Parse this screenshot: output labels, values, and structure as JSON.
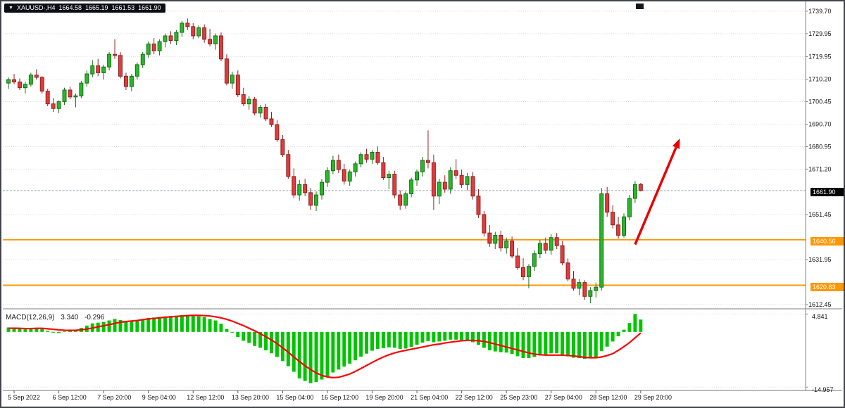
{
  "header": {
    "dropdown_icon": "▼",
    "symbol_timeframe": "XAUUSD-,H4",
    "open": "1664.58",
    "high": "1665.19",
    "low": "1661.53",
    "close": "1661.90"
  },
  "price_axis": {
    "current_price_label": "1661.90"
  },
  "macd_panel": {
    "label": "MACD(12,26,9)",
    "macd_value": "3.340",
    "signal_value": "-0.296"
  },
  "colors": {
    "bull_fill": "#2db52d",
    "bull_border": "#156e15",
    "bear_fill": "#e03c3c",
    "bear_border": "#8f1f1f",
    "macd_histogram": "#00c400",
    "macd_signal": "#ff0000",
    "level_line": "#ff9800",
    "arrow": "#e60000",
    "grid": "#d9d9d9",
    "separator": "#7e7e7e",
    "axis_text": "#111111",
    "current_price_line": "#9aa4ad"
  },
  "chart_data": {
    "type": "candlestick",
    "symbol": "XAUUSD",
    "timeframe": "H4",
    "title": "XAUUSD-,H4",
    "current_ohlc": {
      "open": 1664.58,
      "high": 1665.19,
      "low": 1661.53,
      "close": 1661.9
    },
    "current_price": 1661.9,
    "current_price_label": "1661.90",
    "y_ticks": [
      {
        "price": 1739.7,
        "label": "1739.70"
      },
      {
        "price": 1729.95,
        "label": "1729.95"
      },
      {
        "price": 1719.95,
        "label": "1719.95"
      },
      {
        "price": 1710.2,
        "label": "1710.20"
      },
      {
        "price": 1700.45,
        "label": "1700.45"
      },
      {
        "price": 1690.7,
        "label": "1690.70"
      },
      {
        "price": 1680.95,
        "label": "1680.95"
      },
      {
        "price": 1671.2,
        "label": "1671.20"
      },
      {
        "price": 1651.45,
        "label": "1651.45"
      },
      {
        "price": 1631.95,
        "label": "1631.95"
      },
      {
        "price": 1612.45,
        "label": "1612.45"
      }
    ],
    "x_ticks": [
      {
        "i": 1,
        "label": "5 Sep 2022"
      },
      {
        "i": 9,
        "label": "6 Sep 12:00"
      },
      {
        "i": 17,
        "label": "7 Sep 20:00"
      },
      {
        "i": 25,
        "label": "9 Sep 04:00"
      },
      {
        "i": 33,
        "label": "12 Sep 12:00"
      },
      {
        "i": 41,
        "label": "13 Sep 20:00"
      },
      {
        "i": 49,
        "label": "15 Sep 04:00"
      },
      {
        "i": 57,
        "label": "16 Sep 12:00"
      },
      {
        "i": 65,
        "label": "19 Sep 20:00"
      },
      {
        "i": 73,
        "label": "21 Sep 04:00"
      },
      {
        "i": 81,
        "label": "22 Sep 12:00"
      },
      {
        "i": 89,
        "label": "25 Sep 23:00"
      },
      {
        "i": 97,
        "label": "27 Sep 04:00"
      },
      {
        "i": 105,
        "label": "28 Sep 12:00"
      },
      {
        "i": 113,
        "label": "29 Sep 20:00"
      }
    ],
    "levels": [
      {
        "price": 1640.56,
        "label": "1640.56"
      },
      {
        "price": 1620.83,
        "label": "1620.83"
      }
    ],
    "arrow": {
      "from_index": 112,
      "from_price": 1638.5,
      "to_index": 120,
      "to_price": 1684.5
    },
    "candles": [
      [
        1708.5,
        1711.0,
        1706.0,
        1710.0
      ],
      [
        1710.0,
        1712.5,
        1708.0,
        1709.0
      ],
      [
        1709.0,
        1710.5,
        1705.5,
        1706.5
      ],
      [
        1706.5,
        1709.0,
        1704.0,
        1708.0
      ],
      [
        1708.0,
        1713.0,
        1707.0,
        1712.0
      ],
      [
        1712.0,
        1714.5,
        1710.0,
        1711.0
      ],
      [
        1711.0,
        1711.5,
        1704.0,
        1705.0
      ],
      [
        1705.0,
        1706.0,
        1698.5,
        1699.5
      ],
      [
        1699.5,
        1702.0,
        1696.0,
        1697.5
      ],
      [
        1697.5,
        1701.0,
        1695.5,
        1700.5
      ],
      [
        1700.5,
        1706.5,
        1699.0,
        1705.5
      ],
      [
        1705.5,
        1707.0,
        1701.5,
        1702.5
      ],
      [
        1702.5,
        1704.0,
        1698.0,
        1703.0
      ],
      [
        1703.0,
        1709.5,
        1702.0,
        1708.5
      ],
      [
        1708.5,
        1714.0,
        1707.0,
        1712.5
      ],
      [
        1712.5,
        1718.5,
        1711.0,
        1716.0
      ],
      [
        1716.0,
        1719.0,
        1711.5,
        1713.0
      ],
      [
        1713.0,
        1716.5,
        1710.0,
        1715.5
      ],
      [
        1715.5,
        1722.0,
        1714.0,
        1721.0
      ],
      [
        1721.0,
        1727.5,
        1719.0,
        1720.5
      ],
      [
        1720.5,
        1722.0,
        1710.5,
        1711.5
      ],
      [
        1711.5,
        1713.0,
        1705.5,
        1707.0
      ],
      [
        1707.0,
        1712.5,
        1705.0,
        1711.5
      ],
      [
        1711.5,
        1717.5,
        1710.0,
        1716.5
      ],
      [
        1716.5,
        1722.0,
        1715.0,
        1721.0
      ],
      [
        1721.0,
        1726.5,
        1719.5,
        1725.5
      ],
      [
        1725.5,
        1728.0,
        1721.0,
        1722.5
      ],
      [
        1722.5,
        1727.5,
        1720.5,
        1726.5
      ],
      [
        1726.5,
        1730.0,
        1724.0,
        1729.0
      ],
      [
        1729.0,
        1731.0,
        1725.5,
        1727.0
      ],
      [
        1727.0,
        1731.5,
        1725.0,
        1730.5
      ],
      [
        1730.5,
        1735.5,
        1728.5,
        1734.5
      ],
      [
        1734.5,
        1736.5,
        1731.5,
        1733.0
      ],
      [
        1733.0,
        1734.5,
        1727.5,
        1729.0
      ],
      [
        1729.0,
        1733.5,
        1728.0,
        1732.5
      ],
      [
        1732.5,
        1734.0,
        1726.0,
        1727.5
      ],
      [
        1727.5,
        1732.0,
        1724.5,
        1725.5
      ],
      [
        1725.5,
        1730.0,
        1723.0,
        1729.0
      ],
      [
        1729.0,
        1730.5,
        1718.0,
        1719.0
      ],
      [
        1719.0,
        1721.0,
        1707.5,
        1708.5
      ],
      [
        1708.5,
        1713.5,
        1706.0,
        1712.0
      ],
      [
        1712.0,
        1714.0,
        1702.5,
        1703.5
      ],
      [
        1703.5,
        1706.5,
        1698.5,
        1699.5
      ],
      [
        1699.5,
        1703.0,
        1697.0,
        1701.5
      ],
      [
        1701.5,
        1702.5,
        1694.5,
        1695.5
      ],
      [
        1695.5,
        1699.0,
        1693.5,
        1698.0
      ],
      [
        1698.0,
        1699.5,
        1692.0,
        1693.0
      ],
      [
        1693.0,
        1696.0,
        1689.5,
        1690.5
      ],
      [
        1690.5,
        1692.5,
        1683.0,
        1684.0
      ],
      [
        1684.0,
        1686.0,
        1676.5,
        1677.5
      ],
      [
        1677.5,
        1679.5,
        1667.0,
        1668.0
      ],
      [
        1668.0,
        1671.5,
        1658.5,
        1660.0
      ],
      [
        1660.0,
        1666.5,
        1657.5,
        1664.5
      ],
      [
        1664.5,
        1667.0,
        1659.5,
        1661.0
      ],
      [
        1661.0,
        1663.0,
        1653.5,
        1655.5
      ],
      [
        1655.5,
        1661.5,
        1653.0,
        1660.0
      ],
      [
        1660.0,
        1667.0,
        1658.0,
        1665.5
      ],
      [
        1665.5,
        1672.0,
        1663.5,
        1670.5
      ],
      [
        1670.5,
        1677.0,
        1669.0,
        1675.0
      ],
      [
        1675.0,
        1677.5,
        1669.5,
        1671.0
      ],
      [
        1671.0,
        1673.5,
        1664.5,
        1666.0
      ],
      [
        1666.0,
        1671.0,
        1664.0,
        1670.0
      ],
      [
        1670.0,
        1674.5,
        1668.0,
        1673.5
      ],
      [
        1673.5,
        1678.5,
        1672.0,
        1677.5
      ],
      [
        1677.5,
        1680.0,
        1674.0,
        1675.5
      ],
      [
        1675.5,
        1679.5,
        1673.5,
        1678.5
      ],
      [
        1678.5,
        1681.0,
        1673.0,
        1674.0
      ],
      [
        1674.0,
        1676.5,
        1666.5,
        1667.5
      ],
      [
        1667.5,
        1670.5,
        1662.5,
        1669.0
      ],
      [
        1669.0,
        1670.5,
        1658.5,
        1660.0
      ],
      [
        1660.0,
        1662.0,
        1653.5,
        1655.5
      ],
      [
        1655.5,
        1661.5,
        1654.0,
        1660.5
      ],
      [
        1660.5,
        1667.5,
        1659.0,
        1666.5
      ],
      [
        1666.5,
        1671.0,
        1664.0,
        1670.0
      ],
      [
        1670.0,
        1676.5,
        1668.0,
        1675.0
      ],
      [
        1675.0,
        1688.0,
        1671.5,
        1674.0
      ],
      [
        1674.0,
        1677.5,
        1653.5,
        1659.5
      ],
      [
        1659.5,
        1667.0,
        1656.0,
        1665.5
      ],
      [
        1665.5,
        1668.5,
        1661.0,
        1662.5
      ],
      [
        1662.5,
        1672.0,
        1660.5,
        1670.5
      ],
      [
        1670.5,
        1675.5,
        1667.0,
        1668.5
      ],
      [
        1668.5,
        1671.0,
        1663.0,
        1664.5
      ],
      [
        1664.5,
        1669.5,
        1662.0,
        1668.0
      ],
      [
        1668.0,
        1670.0,
        1658.0,
        1659.5
      ],
      [
        1659.5,
        1662.5,
        1650.0,
        1651.5
      ],
      [
        1651.5,
        1653.0,
        1642.0,
        1643.5
      ],
      [
        1643.5,
        1647.0,
        1637.5,
        1639.0
      ],
      [
        1639.0,
        1644.0,
        1636.5,
        1642.5
      ],
      [
        1642.5,
        1644.5,
        1635.5,
        1637.0
      ],
      [
        1637.0,
        1641.5,
        1634.5,
        1640.0
      ],
      [
        1640.0,
        1642.0,
        1632.5,
        1633.5
      ],
      [
        1633.5,
        1637.0,
        1627.5,
        1628.5
      ],
      [
        1628.5,
        1632.5,
        1623.0,
        1624.5
      ],
      [
        1624.5,
        1630.0,
        1619.5,
        1629.0
      ],
      [
        1629.0,
        1636.0,
        1627.0,
        1634.5
      ],
      [
        1634.5,
        1640.5,
        1632.5,
        1639.0
      ],
      [
        1639.0,
        1641.5,
        1634.5,
        1636.0
      ],
      [
        1636.0,
        1643.0,
        1634.0,
        1641.5
      ],
      [
        1641.5,
        1643.5,
        1636.5,
        1638.0
      ],
      [
        1638.0,
        1640.0,
        1629.5,
        1630.5
      ],
      [
        1630.5,
        1632.5,
        1622.5,
        1623.5
      ],
      [
        1623.5,
        1627.0,
        1618.5,
        1619.5
      ],
      [
        1619.5,
        1623.5,
        1616.5,
        1622.0
      ],
      [
        1622.0,
        1623.0,
        1614.5,
        1616.0
      ],
      [
        1616.0,
        1620.0,
        1613.0,
        1618.5
      ],
      [
        1618.5,
        1622.0,
        1615.5,
        1620.0
      ],
      [
        1620.0,
        1663.0,
        1618.5,
        1660.5
      ],
      [
        1660.5,
        1663.5,
        1650.5,
        1652.5
      ],
      [
        1652.5,
        1655.5,
        1645.5,
        1647.0
      ],
      [
        1647.0,
        1650.5,
        1641.0,
        1642.5
      ],
      [
        1642.5,
        1652.0,
        1641.5,
        1650.5
      ],
      [
        1650.5,
        1660.0,
        1649.0,
        1658.5
      ],
      [
        1658.5,
        1666.0,
        1656.5,
        1664.5
      ],
      [
        1664.58,
        1665.19,
        1661.53,
        1661.9
      ]
    ],
    "macd": {
      "params": [
        12,
        26,
        9
      ],
      "last_macd": 3.34,
      "last_signal": -0.296,
      "scale_max": 4.841,
      "scale_min": -14.957,
      "scale_max_label": "4.841",
      "scale_min_label": "-14.957",
      "histogram": [
        1.2,
        1.0,
        0.8,
        0.7,
        0.9,
        1.1,
        0.8,
        0.3,
        -0.2,
        -0.3,
        0.1,
        0.3,
        0.6,
        1.1,
        1.7,
        2.3,
        2.5,
        2.7,
        3.1,
        3.5,
        3.2,
        2.8,
        2.9,
        3.2,
        3.5,
        3.8,
        3.9,
        4.0,
        4.2,
        4.3,
        4.4,
        4.5,
        4.5,
        4.3,
        4.2,
        4.0,
        3.5,
        3.1,
        2.2,
        0.8,
        -0.2,
        -1.4,
        -2.4,
        -3.0,
        -3.8,
        -4.3,
        -5.0,
        -5.8,
        -6.8,
        -7.9,
        -9.3,
        -10.8,
        -12.6,
        -13.3,
        -13.9,
        -13.6,
        -12.9,
        -12.0,
        -11.0,
        -10.2,
        -9.4,
        -8.6,
        -7.7,
        -6.7,
        -5.9,
        -5.1,
        -4.6,
        -4.4,
        -4.2,
        -4.3,
        -4.6,
        -4.5,
        -4.1,
        -3.5,
        -2.9,
        -2.5,
        -2.8,
        -2.6,
        -2.4,
        -2.1,
        -2.1,
        -2.2,
        -2.4,
        -2.8,
        -3.5,
        -4.3,
        -5.0,
        -5.3,
        -5.5,
        -5.6,
        -6.0,
        -6.6,
        -7.1,
        -7.1,
        -6.8,
        -6.4,
        -6.1,
        -5.8,
        -5.8,
        -6.1,
        -6.6,
        -7.0,
        -7.1,
        -7.3,
        -7.2,
        -6.9,
        -5.2,
        -4.0,
        -2.6,
        -1.2,
        0.6,
        2.4,
        4.841,
        3.34
      ],
      "signal": [
        1.0,
        1.0,
        0.95,
        0.9,
        0.9,
        0.95,
        0.95,
        0.85,
        0.7,
        0.55,
        0.45,
        0.4,
        0.45,
        0.55,
        0.75,
        1.05,
        1.35,
        1.65,
        1.95,
        2.3,
        2.6,
        2.8,
        2.95,
        3.1,
        3.3,
        3.5,
        3.65,
        3.8,
        3.95,
        4.1,
        4.2,
        4.3,
        4.4,
        4.45,
        4.45,
        4.4,
        4.3,
        4.1,
        3.8,
        3.4,
        2.9,
        2.3,
        1.7,
        1.0,
        0.3,
        -0.5,
        -1.3,
        -2.2,
        -3.2,
        -4.3,
        -5.5,
        -6.8,
        -8.0,
        -9.2,
        -10.2,
        -11.1,
        -11.8,
        -12.2,
        -12.4,
        -12.3,
        -11.9,
        -11.4,
        -10.7,
        -9.9,
        -9.1,
        -8.3,
        -7.5,
        -6.8,
        -6.2,
        -5.7,
        -5.3,
        -5.0,
        -4.7,
        -4.4,
        -4.1,
        -3.8,
        -3.5,
        -3.3,
        -3.0,
        -2.8,
        -2.6,
        -2.4,
        -2.3,
        -2.3,
        -2.4,
        -2.6,
        -2.9,
        -3.3,
        -3.7,
        -4.1,
        -4.5,
        -4.9,
        -5.3,
        -5.7,
        -6.0,
        -6.2,
        -6.3,
        -6.3,
        -6.3,
        -6.3,
        -6.4,
        -6.5,
        -6.7,
        -6.9,
        -7.0,
        -7.0,
        -6.8,
        -6.4,
        -5.9,
        -5.0,
        -4.0,
        -2.9,
        -1.6,
        -0.296
      ]
    }
  }
}
